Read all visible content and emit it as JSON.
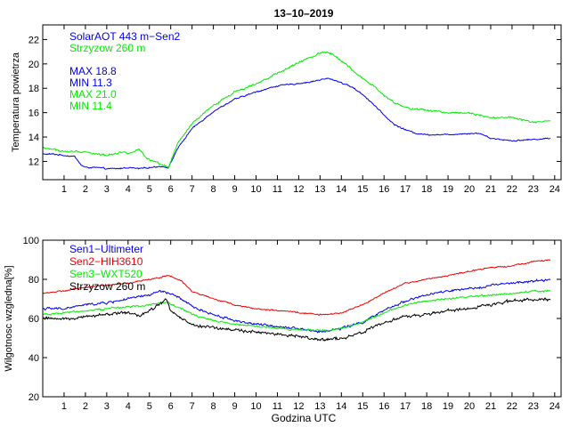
{
  "figure_title": "13–10–2019",
  "colors": {
    "blue": "#0000ee",
    "green": "#00ee00",
    "red": "#ee0000",
    "black": "#000000"
  },
  "chart_data": [
    {
      "type": "line",
      "ylabel": "Temperatura powietrza",
      "xlabel": "",
      "xlim": [
        0,
        24.3
      ],
      "ylim": [
        10.5,
        23.2
      ],
      "x_ticks": [
        1,
        2,
        3,
        4,
        5,
        6,
        7,
        8,
        9,
        10,
        11,
        12,
        13,
        14,
        15,
        16,
        17,
        18,
        19,
        20,
        21,
        22,
        23,
        24
      ],
      "y_ticks": [
        12,
        14,
        16,
        18,
        20,
        22
      ],
      "legend": [
        "SolarAOT 443 m−Sen2",
        "Strzyzow 260 m"
      ],
      "annotations": [
        "MAX 18.8",
        "MIN 11.3",
        "MAX 21.0",
        "MIN 11.4"
      ],
      "series": [
        {
          "name": "SolarAOT 443 m−Sen2",
          "color": "#0000ee",
          "noise": 0.08,
          "x": [
            0,
            0.5,
            1,
            1.5,
            1.8,
            2,
            2.5,
            3,
            3.5,
            4,
            4.5,
            5,
            5.5,
            5.9,
            6.3,
            7,
            8,
            9,
            10,
            11,
            12,
            12.5,
            13,
            13.4,
            13.8,
            14.5,
            15,
            15.5,
            16,
            16.5,
            17,
            17.5,
            18,
            19,
            20,
            20.5,
            21,
            22,
            23,
            23.8
          ],
          "y": [
            12.6,
            12.6,
            12.5,
            12.4,
            11.7,
            11.5,
            11.5,
            11.4,
            11.4,
            11.5,
            11.4,
            11.5,
            11.6,
            11.5,
            13.0,
            14.7,
            16.1,
            17.1,
            17.7,
            18.2,
            18.4,
            18.5,
            18.7,
            18.8,
            18.6,
            18.1,
            17.5,
            16.7,
            15.8,
            15.0,
            14.6,
            14.3,
            14.2,
            14.2,
            14.3,
            14.3,
            13.9,
            13.7,
            13.8,
            13.9
          ]
        },
        {
          "name": "Strzyzow 260 m",
          "color": "#00ee00",
          "noise": 0.12,
          "x": [
            0,
            0.5,
            1,
            1.5,
            2,
            2.5,
            3,
            3.5,
            3.8,
            4,
            4.3,
            4.5,
            4.8,
            5,
            5.3,
            5.6,
            5.9,
            6.3,
            7,
            8,
            9,
            10,
            11,
            12,
            12.5,
            13,
            13.3,
            13.6,
            14,
            14.5,
            15,
            15.5,
            16,
            16.5,
            17,
            18,
            19,
            20,
            21,
            22,
            23,
            23.8
          ],
          "y": [
            13.1,
            13.0,
            12.8,
            12.8,
            12.8,
            12.6,
            12.5,
            12.7,
            12.8,
            12.6,
            12.9,
            13.0,
            12.4,
            12.1,
            11.9,
            11.7,
            11.5,
            13.4,
            15.1,
            16.6,
            17.7,
            18.4,
            19.2,
            20.1,
            20.5,
            20.9,
            21.0,
            20.8,
            20.3,
            19.5,
            18.8,
            18.2,
            17.4,
            16.8,
            16.4,
            16.2,
            16.0,
            16.0,
            15.6,
            15.6,
            15.2,
            15.3
          ]
        }
      ]
    },
    {
      "type": "line",
      "ylabel": "Wilgotnosc wzgledna[%]",
      "xlabel": "Godzina UTC",
      "xlim": [
        0,
        24.3
      ],
      "ylim": [
        20,
        100
      ],
      "x_ticks": [
        1,
        2,
        3,
        4,
        5,
        6,
        7,
        8,
        9,
        10,
        11,
        12,
        13,
        14,
        15,
        16,
        17,
        18,
        19,
        20,
        21,
        22,
        23,
        24
      ],
      "y_ticks": [
        20,
        40,
        60,
        80,
        100
      ],
      "legend": [
        "Sen1−Ultimeter",
        "Sen2−HIH3610",
        "Sen3−WXT520",
        "Strzyzow 260 m"
      ],
      "series": [
        {
          "name": "Sen1−Ultimeter",
          "color": "#0000ee",
          "noise": 0.9,
          "x": [
            0,
            1,
            2,
            3,
            4,
            5,
            5.5,
            5.9,
            6.5,
            7,
            8,
            9,
            10,
            11,
            12,
            13,
            13.5,
            14,
            15,
            16,
            17,
            18,
            19,
            20,
            21,
            22,
            23,
            23.8
          ],
          "y": [
            65,
            65,
            67,
            68,
            70,
            72,
            74,
            73,
            70,
            66,
            62,
            59,
            57,
            56,
            55,
            53,
            54,
            55,
            58,
            64,
            69,
            72,
            74,
            75,
            77,
            78,
            79,
            80
          ]
        },
        {
          "name": "Sen2−HIH3610",
          "color": "#ee0000",
          "noise": 0.5,
          "x": [
            0,
            1,
            2,
            3,
            4,
            5,
            5.5,
            5.9,
            6.5,
            7,
            8,
            9,
            10,
            11,
            12,
            13,
            13.5,
            14,
            15,
            16,
            17,
            18,
            19,
            20,
            21,
            22,
            23,
            23.8
          ],
          "y": [
            73,
            74,
            76,
            77,
            78,
            80,
            81,
            82,
            79,
            74,
            70,
            67,
            65,
            64,
            63,
            62,
            62,
            63,
            67,
            73,
            78,
            80,
            82,
            84,
            86,
            87,
            89,
            90
          ]
        },
        {
          "name": "Sen3−WXT520",
          "color": "#00ee00",
          "noise": 0.7,
          "x": [
            0,
            1,
            2,
            3,
            4,
            5,
            5.5,
            5.9,
            6.5,
            7,
            8,
            9,
            10,
            11,
            12,
            13,
            13.5,
            14,
            15,
            16,
            17,
            18,
            19,
            20,
            21,
            22,
            23,
            23.8
          ],
          "y": [
            62,
            63,
            64,
            65,
            66,
            67,
            68,
            68,
            65,
            62,
            59,
            57,
            56,
            55,
            54,
            54,
            54,
            55,
            58,
            63,
            67,
            69,
            70,
            71,
            72,
            73,
            74,
            74
          ]
        },
        {
          "name": "Strzyzow 260 m",
          "color": "#000000",
          "noise": 1.1,
          "x": [
            0,
            1,
            2,
            3,
            4,
            4.5,
            5,
            5.3,
            5.6,
            5.8,
            6.0,
            6.5,
            7,
            8,
            9,
            10,
            11,
            12,
            13,
            13.5,
            14,
            15,
            16,
            17,
            18,
            19,
            20,
            21,
            22,
            23,
            23.8
          ],
          "y": [
            60,
            60,
            61,
            62,
            63,
            61,
            64,
            66,
            68,
            70,
            64,
            60,
            57,
            55,
            54,
            53,
            52,
            51,
            49,
            49,
            50,
            53,
            58,
            61,
            62,
            64,
            65,
            67,
            69,
            70,
            70
          ]
        }
      ]
    }
  ]
}
